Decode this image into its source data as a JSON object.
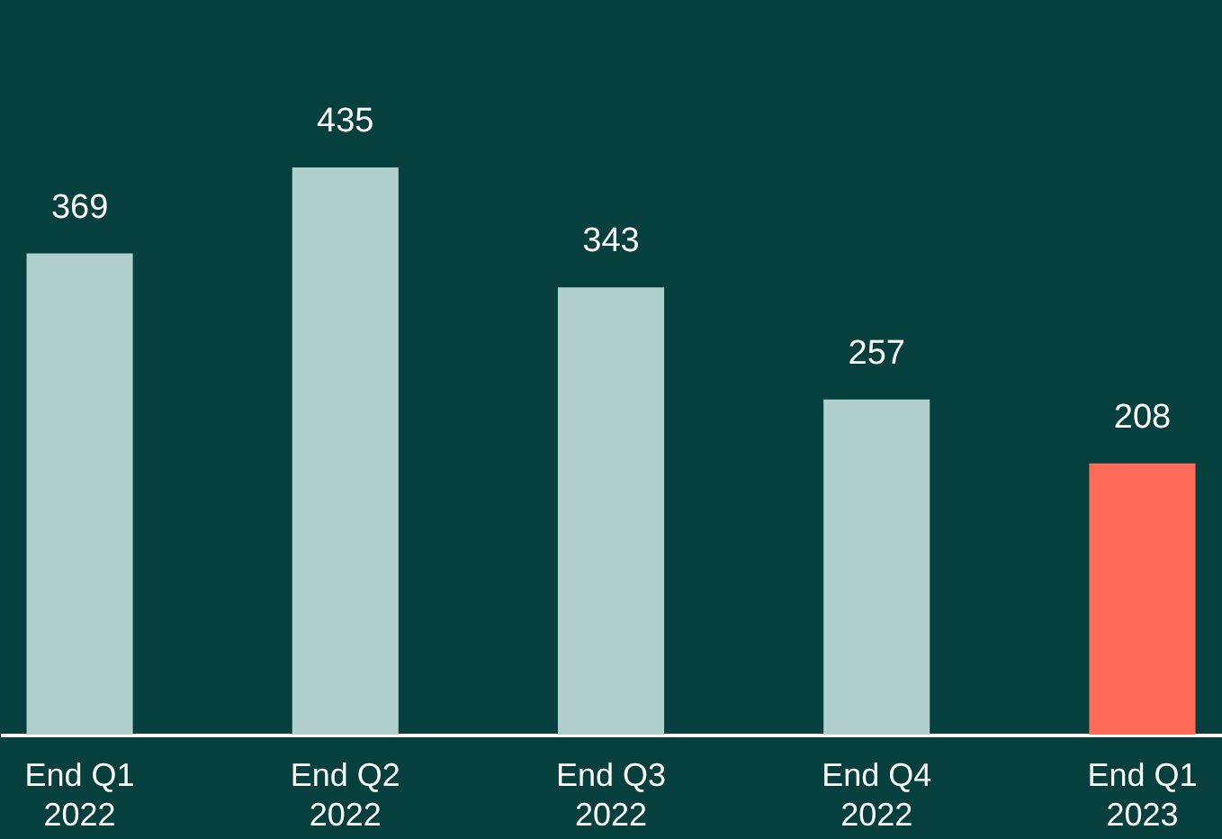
{
  "chart_data": {
    "type": "bar",
    "categories": [
      "End Q1 2022",
      "End Q2 2022",
      "End Q3 2022",
      "End Q4 2022",
      "End Q1 2023"
    ],
    "values": [
      369,
      435,
      343,
      257,
      208
    ],
    "colors": [
      "#b0cfcd",
      "#b0cfcd",
      "#b0cfcd",
      "#b0cfcd",
      "#ff6b58"
    ],
    "data_labels": true
  }
}
